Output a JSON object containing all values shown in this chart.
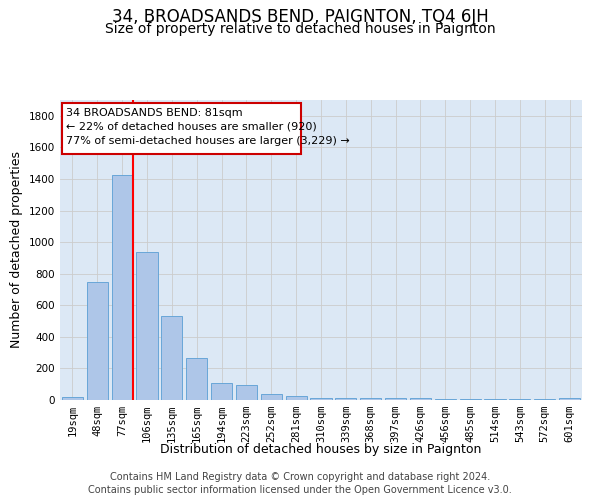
{
  "title": "34, BROADSANDS BEND, PAIGNTON, TQ4 6JH",
  "subtitle": "Size of property relative to detached houses in Paignton",
  "xlabel": "Distribution of detached houses by size in Paignton",
  "ylabel": "Number of detached properties",
  "categories": [
    "19sqm",
    "48sqm",
    "77sqm",
    "106sqm",
    "135sqm",
    "165sqm",
    "194sqm",
    "223sqm",
    "252sqm",
    "281sqm",
    "310sqm",
    "339sqm",
    "368sqm",
    "397sqm",
    "426sqm",
    "456sqm",
    "485sqm",
    "514sqm",
    "543sqm",
    "572sqm",
    "601sqm"
  ],
  "values": [
    20,
    750,
    1425,
    940,
    530,
    265,
    105,
    95,
    35,
    25,
    15,
    10,
    10,
    10,
    10,
    5,
    5,
    5,
    5,
    5,
    15
  ],
  "bar_color": "#aec6e8",
  "bar_edgecolor": "#5a9fd4",
  "grid_color": "#cccccc",
  "background_color": "#dce8f5",
  "red_line_index": 2,
  "annotation_line1": "34 BROADSANDS BEND: 81sqm",
  "annotation_line2": "← 22% of detached houses are smaller (920)",
  "annotation_line3": "77% of semi-detached houses are larger (3,229) →",
  "annotation_box_color": "#ffffff",
  "annotation_box_edgecolor": "#cc0000",
  "ylim": [
    0,
    1900
  ],
  "yticks": [
    0,
    200,
    400,
    600,
    800,
    1000,
    1200,
    1400,
    1600,
    1800
  ],
  "footer_line1": "Contains HM Land Registry data © Crown copyright and database right 2024.",
  "footer_line2": "Contains public sector information licensed under the Open Government Licence v3.0.",
  "title_fontsize": 12,
  "subtitle_fontsize": 10,
  "label_fontsize": 9,
  "tick_fontsize": 7.5,
  "footer_fontsize": 7
}
